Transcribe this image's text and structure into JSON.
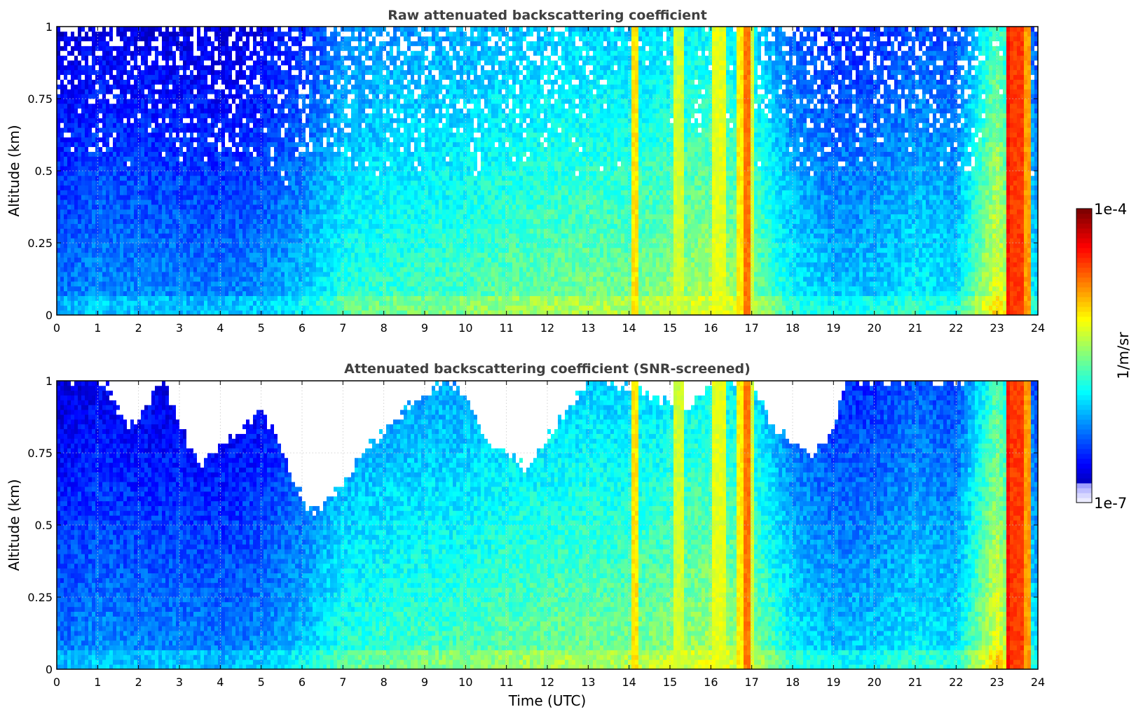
{
  "chart_data": [
    {
      "type": "heatmap",
      "title": "Raw attenuated backscattering coefficient",
      "xlabel": "",
      "ylabel": "Altitude (km)",
      "xlim": [
        0,
        24
      ],
      "ylim": [
        0,
        1
      ],
      "x_ticks": [
        "0",
        "1",
        "2",
        "3",
        "4",
        "5",
        "6",
        "7",
        "8",
        "9",
        "10",
        "11",
        "12",
        "13",
        "14",
        "15",
        "16",
        "17",
        "18",
        "19",
        "20",
        "21",
        "22",
        "23",
        "24"
      ],
      "y_ticks": [
        "0",
        "0.25",
        "0.5",
        "0.75",
        "1"
      ],
      "grid": true,
      "screened": false,
      "profile": [
        [
          0,
          0.25
        ],
        [
          1,
          0.28
        ],
        [
          2,
          0.27
        ],
        [
          3,
          0.27
        ],
        [
          4,
          0.26
        ],
        [
          5,
          0.28
        ],
        [
          6,
          0.33
        ],
        [
          7,
          0.42
        ],
        [
          8,
          0.44
        ],
        [
          9,
          0.45
        ],
        [
          10,
          0.46
        ],
        [
          11,
          0.48
        ],
        [
          12,
          0.49
        ],
        [
          13,
          0.5
        ],
        [
          14,
          0.5
        ],
        [
          15,
          0.52
        ],
        [
          16,
          0.55
        ],
        [
          17,
          0.52
        ],
        [
          18,
          0.38
        ],
        [
          19,
          0.33
        ],
        [
          20,
          0.34
        ],
        [
          21,
          0.38
        ],
        [
          22,
          0.36
        ],
        [
          23,
          0.62
        ],
        [
          24,
          0.35
        ]
      ],
      "bright_bands": [
        {
          "t0": 14.1,
          "t1": 14.25,
          "level": 0.65
        },
        {
          "t0": 15.1,
          "t1": 15.3,
          "level": 0.58
        },
        {
          "t0": 16.05,
          "t1": 16.4,
          "level": 0.6
        },
        {
          "t0": 16.6,
          "t1": 16.82,
          "level": 0.64
        },
        {
          "t0": 16.82,
          "t1": 17.0,
          "level": 0.76
        },
        {
          "t0": 17.0,
          "t1": 17.05,
          "level": 0.58
        },
        {
          "t0": 23.2,
          "t1": 23.35,
          "level": 0.86
        },
        {
          "t0": 23.35,
          "t1": 23.7,
          "level": 0.82
        },
        {
          "t0": 23.7,
          "t1": 23.82,
          "level": 0.72
        }
      ]
    },
    {
      "type": "heatmap",
      "title": "Attenuated backscattering coefficient (SNR-screened)",
      "xlabel": "Time (UTC)",
      "ylabel": "Altitude (km)",
      "xlim": [
        0,
        24
      ],
      "ylim": [
        0,
        1
      ],
      "x_ticks": [
        "0",
        "1",
        "2",
        "3",
        "4",
        "5",
        "6",
        "7",
        "8",
        "9",
        "10",
        "11",
        "12",
        "13",
        "14",
        "15",
        "16",
        "17",
        "18",
        "19",
        "20",
        "21",
        "22",
        "23",
        "24"
      ],
      "y_ticks": [
        "0",
        "0.25",
        "0.5",
        "0.75",
        "1"
      ],
      "grid": true,
      "screened": true,
      "screened_floor_km": [
        [
          0,
          1.0
        ],
        [
          1.2,
          1.0
        ],
        [
          1.5,
          0.9
        ],
        [
          1.8,
          0.85
        ],
        [
          2.2,
          0.92
        ],
        [
          2.6,
          1.0
        ],
        [
          3.0,
          0.85
        ],
        [
          3.5,
          0.7
        ],
        [
          4.0,
          0.78
        ],
        [
          4.5,
          0.82
        ],
        [
          5.0,
          0.9
        ],
        [
          5.4,
          0.8
        ],
        [
          5.8,
          0.65
        ],
        [
          6.2,
          0.55
        ],
        [
          6.6,
          0.58
        ],
        [
          7.0,
          0.65
        ],
        [
          7.5,
          0.75
        ],
        [
          8.0,
          0.82
        ],
        [
          8.5,
          0.9
        ],
        [
          9.0,
          0.95
        ],
        [
          9.5,
          1.0
        ],
        [
          10.0,
          0.95
        ],
        [
          10.5,
          0.8
        ],
        [
          11.0,
          0.75
        ],
        [
          11.5,
          0.7
        ],
        [
          12.0,
          0.8
        ],
        [
          12.5,
          0.9
        ],
        [
          13.0,
          1.0
        ],
        [
          13.5,
          1.0
        ],
        [
          14.5,
          0.95
        ],
        [
          15.5,
          0.9
        ],
        [
          16.0,
          1.0
        ],
        [
          17.0,
          1.0
        ],
        [
          17.5,
          0.85
        ],
        [
          18.0,
          0.78
        ],
        [
          18.5,
          0.75
        ],
        [
          19.0,
          0.82
        ],
        [
          19.3,
          1.0
        ],
        [
          24,
          1.0
        ]
      ]
    }
  ],
  "colorbar": {
    "label": "1/m/sr",
    "max_label": "1e-4",
    "min_label": "1e-7",
    "colormap": "jet",
    "scale": "log",
    "range": [
      1e-07,
      0.0001
    ]
  }
}
